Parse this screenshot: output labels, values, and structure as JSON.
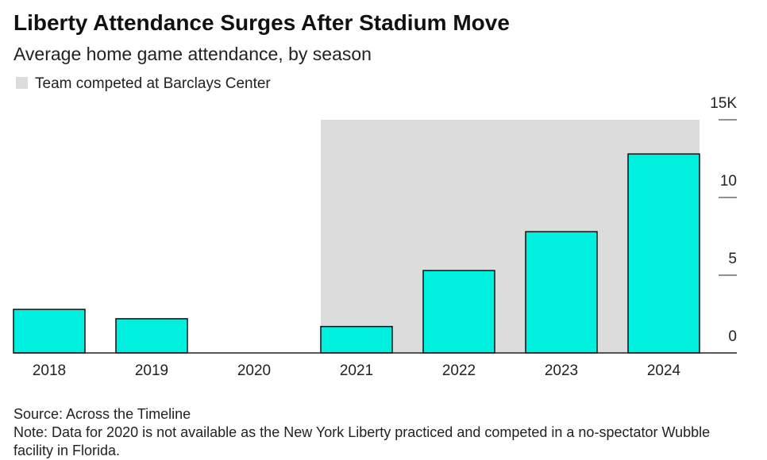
{
  "chart_data": {
    "type": "bar",
    "title": "Liberty Attendance Surges After Stadium Move",
    "subtitle": "Average home game attendance, by season",
    "shaded": {
      "label": "Team competed at Barclays Center",
      "from": "2021",
      "to": "2024",
      "color": "#dcdcdc"
    },
    "categories": [
      "2018",
      "2019",
      "2020",
      "2021",
      "2022",
      "2023",
      "2024"
    ],
    "values": [
      2.8,
      2.2,
      null,
      1.7,
      5.3,
      7.8,
      12.8
    ],
    "color": "#00f0e0",
    "ylim": [
      0,
      15
    ],
    "yticks": [
      0,
      5,
      10,
      {
        "value": 15,
        "label": "15K"
      }
    ],
    "source": "Source: Across the Timeline",
    "note": "Note: Data for 2020 is not available as the New York Liberty practiced and competed in a no-spectator Wubble facility in Florida."
  }
}
